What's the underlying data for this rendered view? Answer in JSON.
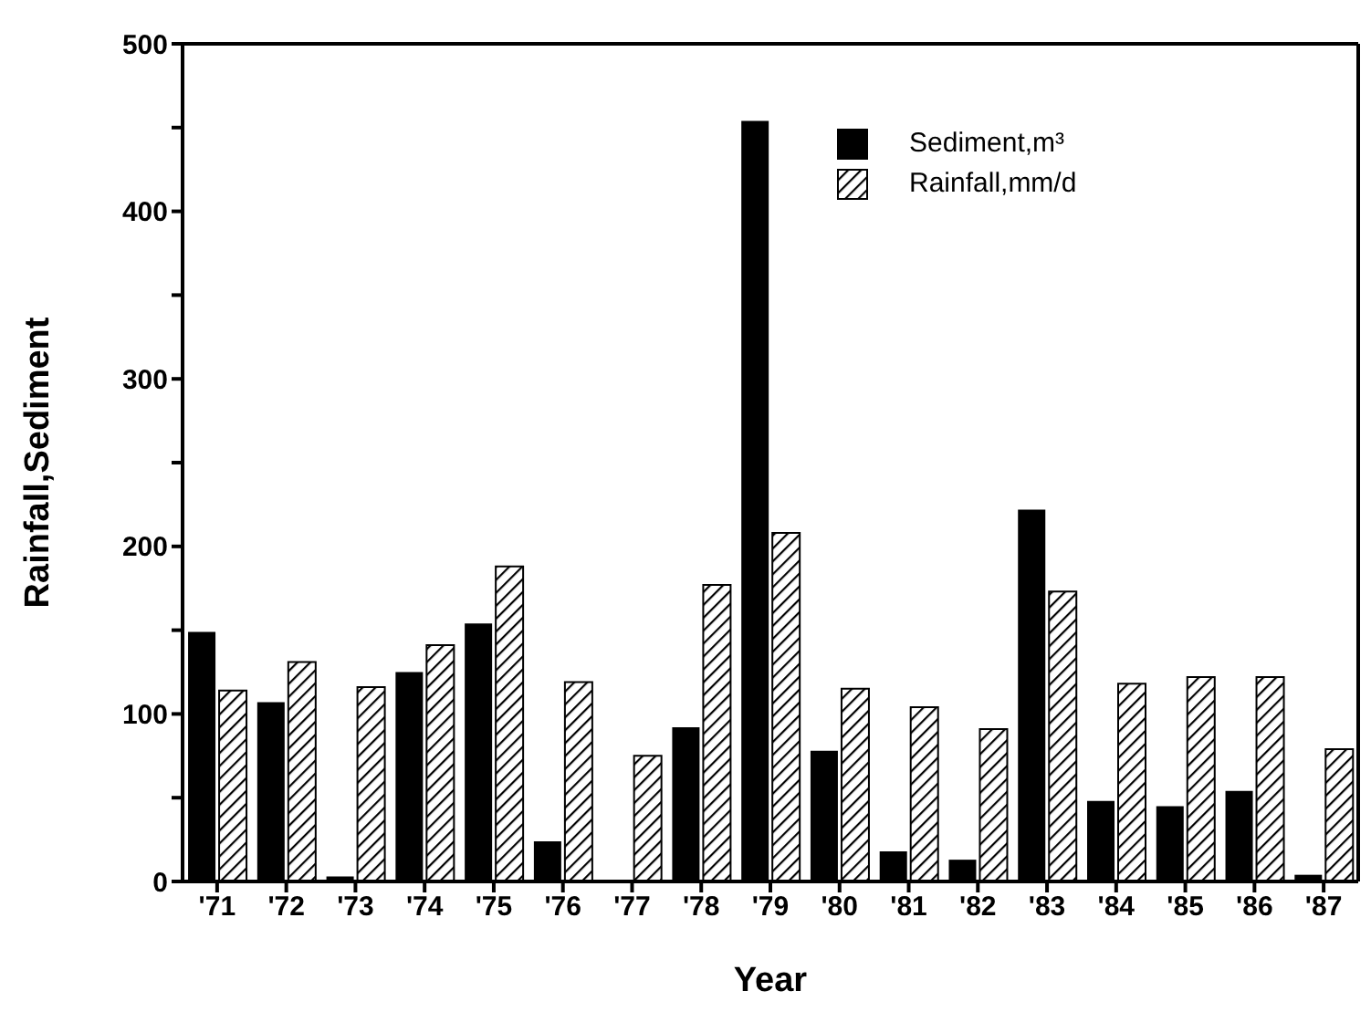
{
  "chart_data": {
    "type": "bar",
    "xlabel": "Year",
    "ylabel": "Rainfall,Sediment",
    "categories": [
      "'71",
      "'72",
      "'73",
      "'74",
      "'75",
      "'76",
      "'77",
      "'78",
      "'79",
      "'80",
      "'81",
      "'82",
      "'83",
      "'84",
      "'85",
      "'86",
      "'87"
    ],
    "series": [
      {
        "name": "Sediment,m³",
        "color": "#000000",
        "values": [
          149,
          107,
          3,
          125,
          154,
          24,
          0,
          92,
          454,
          78,
          18,
          13,
          222,
          48,
          45,
          54,
          4
        ]
      },
      {
        "name": "Rainfall,mm/d",
        "color": "#000000",
        "values": [
          114,
          131,
          116,
          141,
          188,
          119,
          75,
          177,
          208,
          115,
          104,
          91,
          173,
          118,
          122,
          122,
          79
        ]
      }
    ],
    "ylim": [
      0,
      500
    ],
    "yticks": [
      0,
      {
        "value": 50,
        "label": null
      },
      100,
      {
        "value": 150,
        "label": null
      },
      200,
      {
        "value": 250,
        "label": null
      },
      300,
      {
        "value": 350,
        "label": null
      },
      400,
      {
        "value": 450,
        "label": null
      },
      500
    ],
    "grid": false,
    "legend": "top right"
  }
}
